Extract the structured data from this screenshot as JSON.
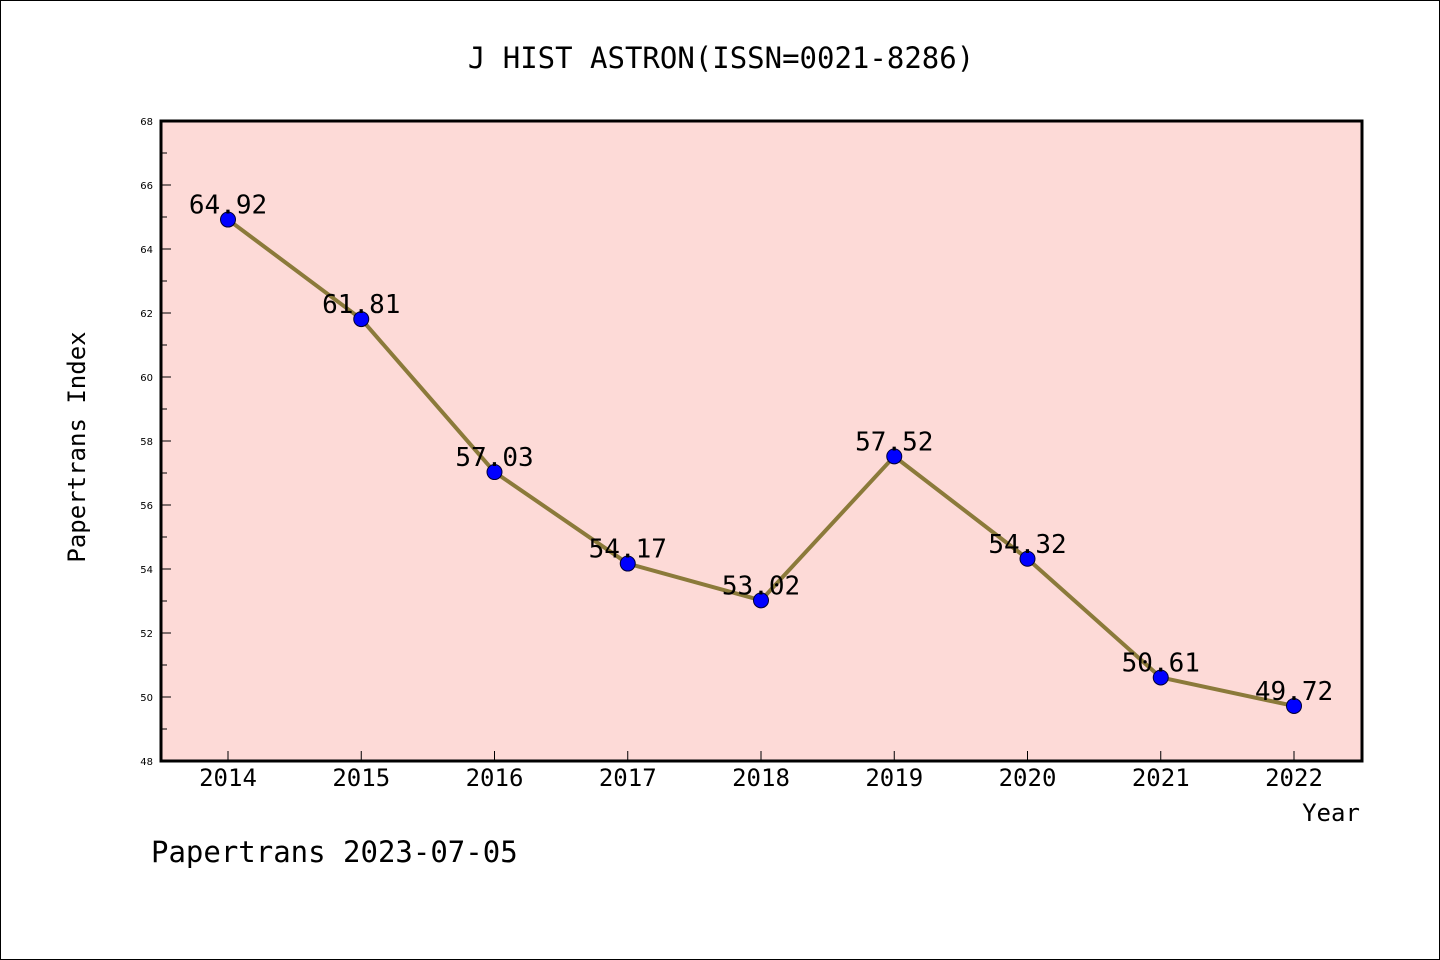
{
  "chart_data": {
    "type": "line",
    "title": "J HIST ASTRON(ISSN=0021-8286)",
    "xlabel": "Year",
    "ylabel": "Papertrans Index",
    "categories": [
      "2014",
      "2015",
      "2016",
      "2017",
      "2018",
      "2019",
      "2020",
      "2021",
      "2022"
    ],
    "values": [
      64.92,
      61.81,
      57.03,
      54.17,
      53.02,
      57.52,
      54.32,
      50.61,
      49.72
    ],
    "data_labels": [
      "64.92",
      "61.81",
      "57.03",
      "54.17",
      "53.02",
      "57.52",
      "54.32",
      "50.61",
      "49.72"
    ],
    "ylim": [
      48,
      68
    ],
    "yticks": [
      "48",
      "50",
      "52",
      "54",
      "56",
      "58",
      "60",
      "62",
      "64",
      "66",
      "68"
    ],
    "grid": false,
    "legend": "none",
    "colors": {
      "plot_background": "#fddad7",
      "line": "#8b7a3a",
      "marker": "#0000ff"
    }
  },
  "footer": {
    "note": "Papertrans 2023-07-05"
  }
}
